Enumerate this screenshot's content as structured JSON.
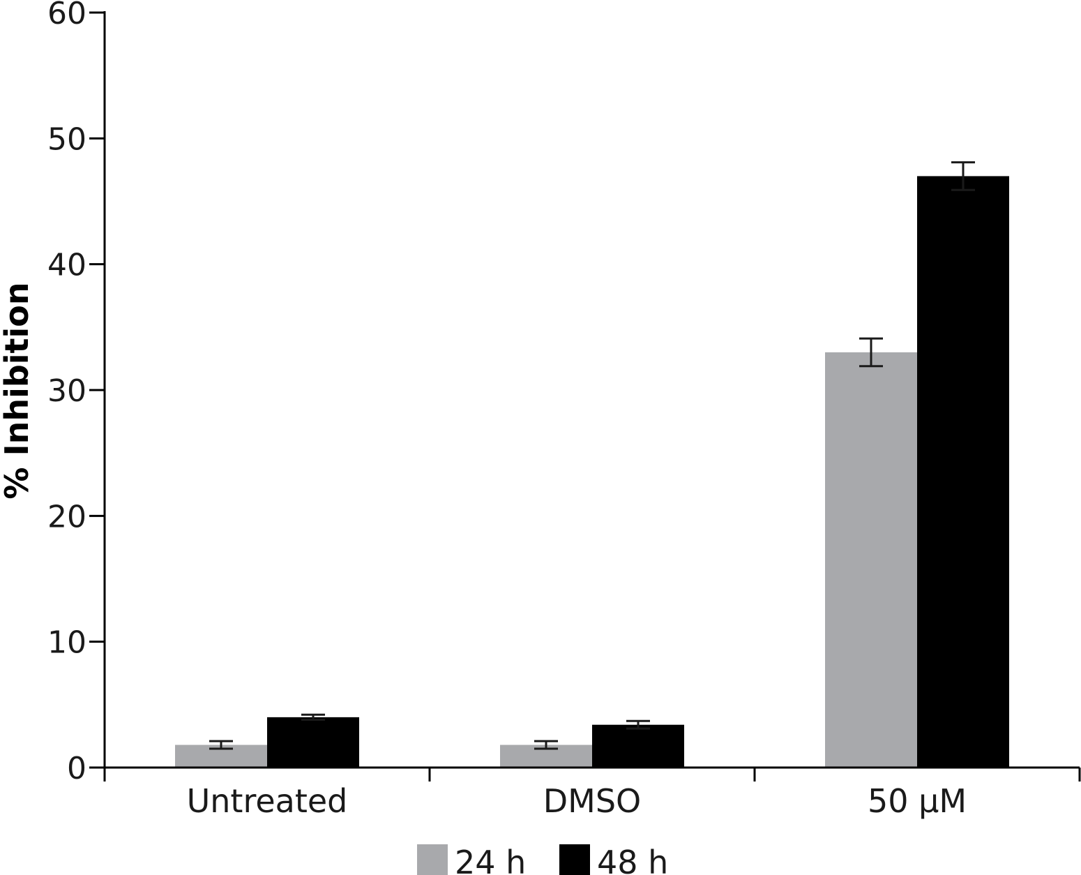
{
  "chart_data": {
    "type": "bar",
    "title": "",
    "xlabel": "",
    "ylabel": "% Inhibition",
    "ylim": [
      0,
      60
    ],
    "yticks": [
      0,
      10,
      20,
      30,
      40,
      50,
      60
    ],
    "categories": [
      "Untreated",
      "DMSO",
      "50 μM"
    ],
    "series": [
      {
        "name": "24 h",
        "color": "#a8a9ac",
        "values": [
          1.8,
          1.8,
          33.0
        ],
        "errors": [
          0.3,
          0.3,
          1.1
        ]
      },
      {
        "name": "48 h",
        "color": "#000000",
        "values": [
          4.0,
          3.4,
          47.0
        ],
        "errors": [
          0.2,
          0.3,
          1.1
        ]
      }
    ],
    "legend_position": "bottom-center",
    "grid": false
  }
}
